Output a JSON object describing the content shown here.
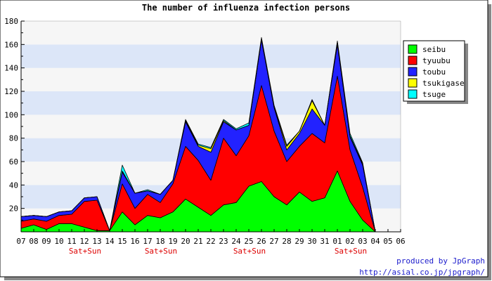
{
  "chart_data": {
    "type": "area",
    "stacked": true,
    "title": "The number of influenza infection persons",
    "xlabel": "",
    "ylabel": "",
    "ylim": [
      0,
      180
    ],
    "yticks": [
      20,
      40,
      60,
      80,
      100,
      120,
      140,
      160,
      180
    ],
    "grid": true,
    "legend_position": "top-right",
    "categories": [
      "07",
      "08",
      "09",
      "10",
      "11",
      "12",
      "13",
      "14",
      "15",
      "16",
      "17",
      "18",
      "19",
      "20",
      "21",
      "22",
      "23",
      "24",
      "25",
      "26",
      "27",
      "28",
      "29",
      "30",
      "31",
      "01",
      "02",
      "03",
      "04",
      "05",
      "06"
    ],
    "weekend_labels": [
      {
        "category": "12",
        "text": "Sat+Sun"
      },
      {
        "category": "18",
        "text": "Sat+Sun"
      },
      {
        "category": "25",
        "text": "Sat+Sun"
      },
      {
        "category": "02",
        "text": "Sat+Sun"
      }
    ],
    "series": [
      {
        "name": "seibu",
        "color": "#00ff00",
        "values": [
          3,
          6,
          2,
          7,
          7,
          4,
          1,
          1,
          17,
          6,
          14,
          12,
          17,
          28,
          21,
          14,
          23,
          25,
          39,
          43,
          30,
          23,
          34,
          26,
          29,
          52,
          26,
          10,
          0,
          0,
          0
        ]
      },
      {
        "name": "tyuubu",
        "color": "#ff0000",
        "values": [
          6,
          5,
          7,
          7,
          8,
          22,
          26,
          0,
          24,
          14,
          18,
          13,
          24,
          45,
          40,
          30,
          57,
          40,
          43,
          82,
          56,
          37,
          39,
          58,
          47,
          81,
          44,
          28,
          0,
          0,
          0
        ]
      },
      {
        "name": "toubu",
        "color": "#2222ff",
        "values": [
          4,
          3,
          4,
          3,
          3,
          3,
          3,
          0,
          10,
          13,
          3,
          7,
          3,
          21,
          12,
          24,
          14,
          22,
          9,
          39,
          20,
          10,
          11,
          21,
          15,
          27,
          11,
          19,
          0,
          0,
          0
        ]
      },
      {
        "name": "tsukigase",
        "color": "#ffff00",
        "values": [
          0,
          0,
          0,
          0,
          0,
          0,
          0,
          0,
          1,
          0,
          0,
          0,
          0,
          1,
          1,
          3,
          1,
          0,
          0,
          1,
          1,
          3,
          2,
          7,
          0,
          2,
          1,
          1,
          0,
          0,
          0
        ]
      },
      {
        "name": "tsuge",
        "color": "#00ffff",
        "values": [
          0,
          0,
          0,
          0,
          0,
          0,
          0,
          0,
          5,
          0,
          1,
          0,
          0,
          1,
          1,
          1,
          1,
          1,
          2,
          1,
          1,
          1,
          0,
          1,
          0,
          1,
          2,
          1,
          0,
          0,
          0
        ]
      }
    ]
  },
  "footer": {
    "credit_line": "produced by JpGraph",
    "credit_url": "http://asial.co.jp/jpgraph/"
  },
  "colors": {
    "band": "#dce6f8",
    "plot_bg": "#f6f6f6",
    "weekend_label": "#dd0000",
    "credit_text": "#1a1acc"
  }
}
